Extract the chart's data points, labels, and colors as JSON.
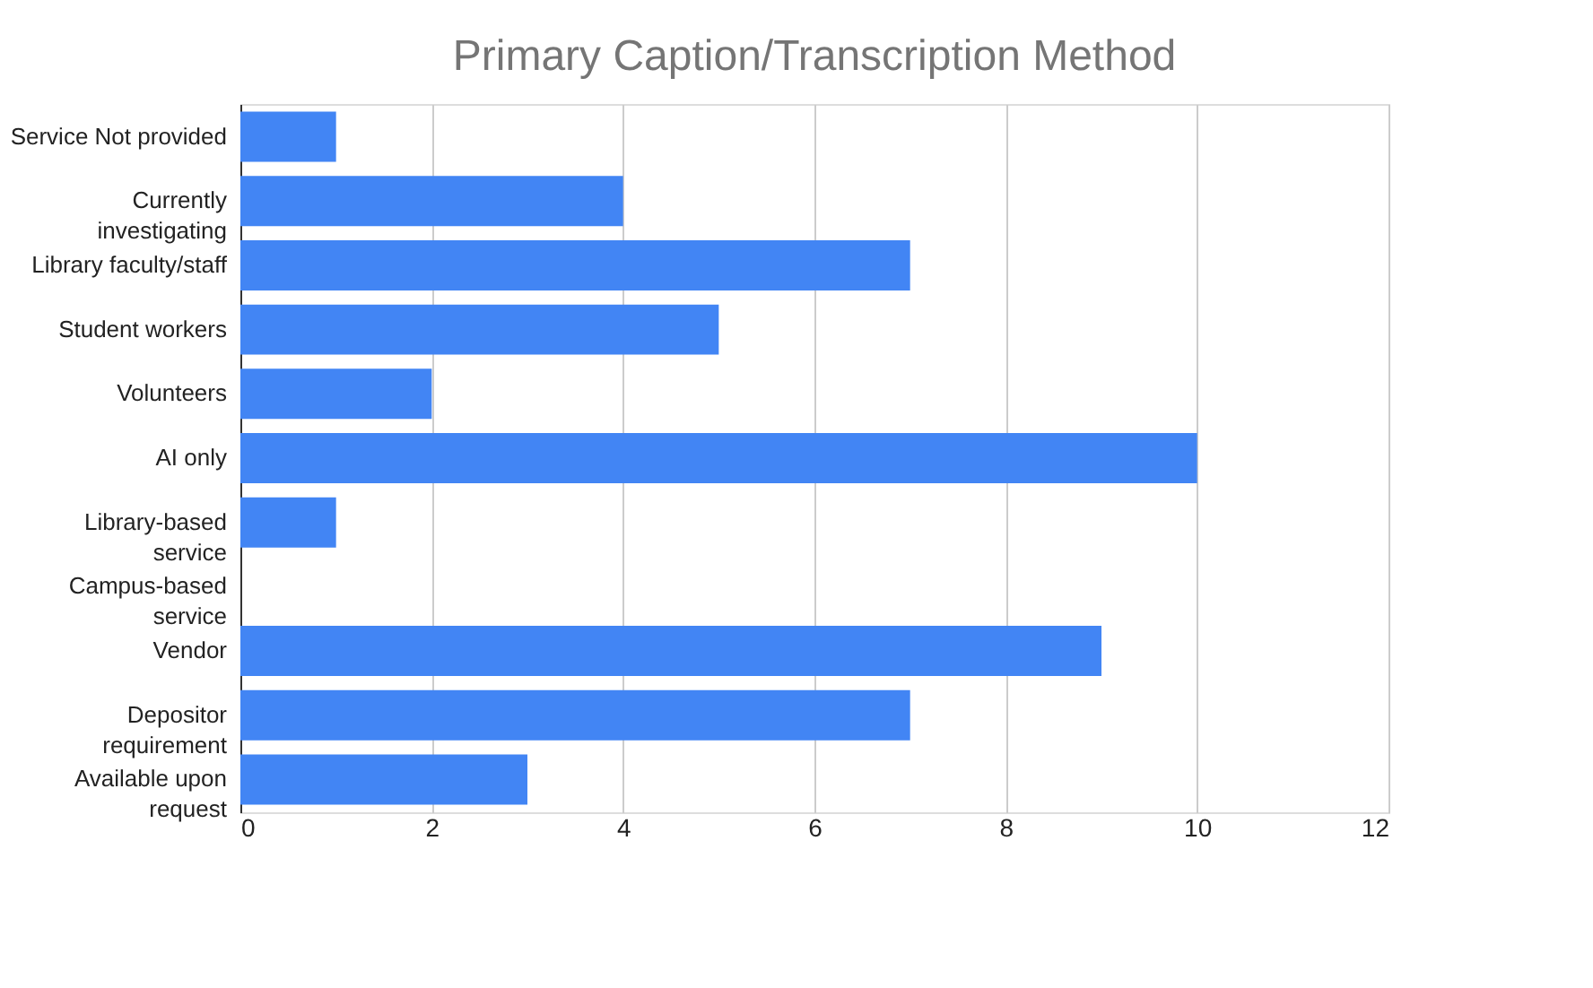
{
  "chart_data": {
    "type": "bar",
    "orientation": "horizontal",
    "title": "Primary Caption/Transcription Method",
    "categories": [
      "Service Not provided",
      "Currently\ninvestigating",
      "Library faculty/staff",
      "Student workers",
      "Volunteers",
      "AI only",
      "Library-based\nservice",
      "Campus-based\nservice",
      "Vendor",
      "Depositor\nrequirement",
      "Available upon\nrequest"
    ],
    "values": [
      1,
      4,
      7,
      5,
      2,
      10,
      1,
      0,
      9,
      7,
      3
    ],
    "color": "#4285f4",
    "xlim": [
      0,
      12
    ],
    "xticks": [
      0,
      2,
      4,
      6,
      8,
      10,
      12
    ],
    "grid": "x"
  }
}
